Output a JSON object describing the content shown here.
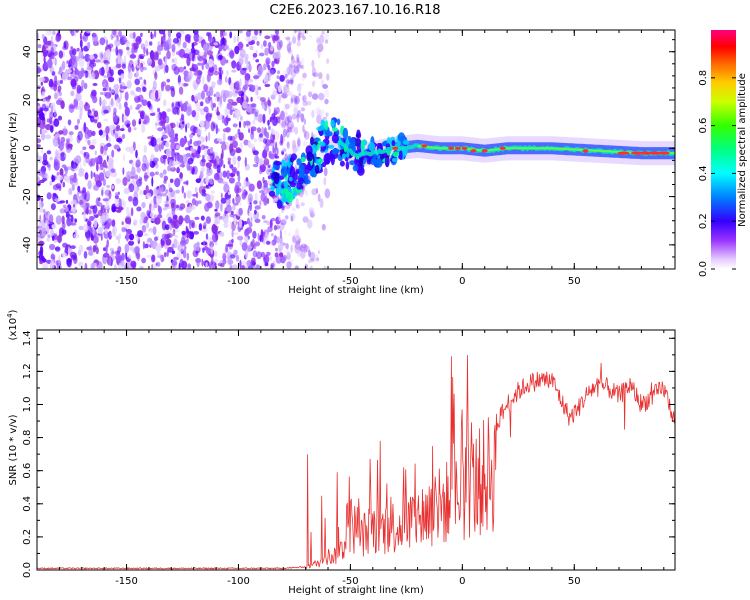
{
  "chart_data": [
    {
      "type": "heatmap",
      "title": "C2E6.2023.167.10.16.R18",
      "xlabel": "Height of straight line (km)",
      "ylabel": "Frequency (Hz)",
      "xlim": [
        -190,
        95
      ],
      "ylim": [
        -50,
        49
      ],
      "xticks": [
        -150,
        -100,
        -50,
        0,
        50
      ],
      "yticks": [
        -40,
        -20,
        0,
        20,
        40
      ],
      "xtick_labels": [
        "-150",
        "-100",
        "-50",
        "0",
        "50"
      ],
      "ytick_labels": [
        "-40",
        "-20",
        "0",
        "20",
        "40"
      ],
      "colorbar": {
        "label": "Normalized spectral amplitude",
        "range": [
          0.0,
          1.0
        ],
        "ticks": [
          0.0,
          0.2,
          0.4,
          0.6,
          0.8
        ],
        "tick_labels": [
          "0.0",
          "0.2",
          "0.4",
          "0.6",
          "0.8"
        ]
      },
      "ridge": {
        "x": [
          -85,
          -78,
          -70,
          -62,
          -55,
          -48,
          -40,
          -30,
          -20,
          -10,
          0,
          10,
          20,
          40,
          60,
          80,
          95
        ],
        "y": [
          -15,
          -14,
          -8,
          2,
          3,
          -3,
          -2,
          0,
          1,
          0,
          0,
          -1,
          0,
          0,
          -1,
          -2,
          -2
        ]
      },
      "noise_until_x": -70,
      "colors": {
        "low": "#7700ff",
        "mid": "#00c8ff",
        "high": "#ff2020"
      }
    },
    {
      "type": "line",
      "title": "",
      "xlabel": "Height of straight line (km)",
      "ylabel": "SNR (10 * v/v)",
      "y_multiplier": "(x10",
      "y_multiplier_exp": "4",
      "y_multiplier_close": ")",
      "xlim": [
        -190,
        95
      ],
      "ylim": [
        0.0,
        1.45
      ],
      "xticks": [
        -150,
        -100,
        -50,
        0,
        50
      ],
      "yticks": [
        0.0,
        0.2,
        0.4,
        0.6,
        0.8,
        1.0,
        1.2,
        1.4
      ],
      "xtick_labels": [
        "-150",
        "-100",
        "-50",
        "0",
        "50"
      ],
      "ytick_labels": [
        "0.0",
        "0.2",
        "0.4",
        "0.6",
        "0.8",
        "1.0",
        "1.2",
        "1.4"
      ],
      "series": [
        {
          "name": "SNR",
          "color": "#e83030",
          "envelope_x": [
            -190,
            -80,
            -70,
            -62,
            -55,
            -52,
            -50,
            -45,
            -40,
            -35,
            -30,
            -25,
            -20,
            -15,
            -10,
            -5,
            0,
            5,
            10,
            15,
            20,
            25,
            30,
            35,
            40,
            45,
            48,
            52,
            55,
            60,
            65,
            70,
            75,
            80,
            85,
            90,
            95
          ],
          "envelope_y": [
            0.01,
            0.01,
            0.02,
            0.08,
            0.15,
            0.25,
            0.4,
            0.3,
            0.35,
            0.35,
            0.38,
            0.4,
            0.45,
            0.5,
            0.55,
            0.6,
            0.68,
            0.72,
            0.8,
            0.88,
            1.0,
            1.08,
            1.13,
            1.15,
            1.15,
            1.0,
            0.92,
            0.98,
            1.05,
            1.12,
            1.1,
            1.05,
            1.12,
            1.0,
            1.05,
            1.1,
            0.9
          ]
        }
      ]
    }
  ]
}
